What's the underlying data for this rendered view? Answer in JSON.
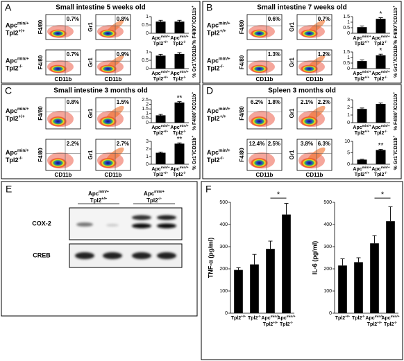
{
  "genotypes": [
    [
      [
        "Apc",
        "min/+"
      ],
      [
        "Tpl2",
        "+/+"
      ]
    ],
    [
      [
        "Apc",
        "min/+"
      ],
      [
        "Tpl2",
        "-/-"
      ]
    ]
  ],
  "flow_ylabels": [
    "F4/80",
    "Gr1"
  ],
  "flow_xlabel": "CD11b",
  "bar_ylabels": [
    [
      "% F4/80",
      "+",
      "/CD11b",
      "+"
    ],
    [
      "% Gr1",
      "+",
      "/CD11b",
      "+"
    ]
  ],
  "panels": [
    {
      "letter": "A",
      "title": "Small intestine 5 weeks old",
      "percents": [
        [
          [
            "0.7%"
          ],
          [
            "0.8%"
          ]
        ],
        [
          [
            "0.7%"
          ],
          [
            "0.9%"
          ]
        ]
      ],
      "bars": [
        {
          "ylim": [
            0,
            1
          ],
          "yticks": [
            0,
            0.5,
            1
          ],
          "values": [
            0.7,
            0.7
          ],
          "errors": [
            0.08,
            0.08
          ]
        },
        {
          "ylim": [
            0,
            1
          ],
          "yticks": [
            0,
            0.5,
            1
          ],
          "values": [
            0.78,
            0.88
          ],
          "errors": [
            0.08,
            0.08
          ]
        }
      ]
    },
    {
      "letter": "B",
      "title": "Small intestine 7 weeks old",
      "percents": [
        [
          [
            "0.6%"
          ],
          [
            "0.7%"
          ]
        ],
        [
          [
            "1.3%"
          ],
          [
            "1.2%"
          ]
        ]
      ],
      "bars": [
        {
          "ylim": [
            0,
            1.5
          ],
          "yticks": [
            0,
            0.5,
            1,
            1.5
          ],
          "values": [
            0.55,
            1.3
          ],
          "errors": [
            0.1,
            0.1
          ],
          "sig": [
            null,
            "*"
          ]
        },
        {
          "ylim": [
            0,
            1.5
          ],
          "yticks": [
            0,
            0.5,
            1,
            1.5
          ],
          "values": [
            0.68,
            1.2
          ],
          "errors": [
            0.1,
            0.1
          ],
          "sig": [
            null,
            "*"
          ]
        }
      ]
    },
    {
      "letter": "C",
      "title": "Small intestine 3 months old",
      "percents": [
        [
          [
            "0.8%"
          ],
          [
            "1.5%"
          ]
        ],
        [
          [
            "2.2%"
          ],
          [
            "2.7%"
          ]
        ]
      ],
      "bars": [
        {
          "ylim": [
            0,
            2.5
          ],
          "yticks": [
            0,
            0.5,
            1,
            1.5,
            2,
            2.5
          ],
          "values": [
            0.8,
            2.2
          ],
          "errors": [
            0.1,
            0.1
          ],
          "sig": [
            null,
            "**"
          ]
        },
        {
          "ylim": [
            0,
            3
          ],
          "yticks": [
            0,
            1,
            2,
            3
          ],
          "values": [
            1.5,
            2.7
          ],
          "errors": [
            0.1,
            0.1
          ],
          "sig": [
            null,
            "**"
          ]
        }
      ]
    },
    {
      "letter": "D",
      "title": "Spleen 3 months old",
      "percents": [
        [
          [
            "6.2%",
            "1.8%"
          ],
          [
            "2.1%",
            "2.2%"
          ]
        ],
        [
          [
            "12.4%",
            "2.5%"
          ],
          [
            "3.8%",
            "6.3%"
          ]
        ]
      ],
      "bars": [
        {
          "ylim": [
            0,
            3
          ],
          "yticks": [
            0,
            1,
            2,
            3
          ],
          "values": [
            1.8,
            2.45
          ],
          "errors": [
            0.12,
            0.12
          ]
        },
        {
          "ylim": [
            0,
            10
          ],
          "yticks": [
            0,
            5,
            10
          ],
          "values": [
            2,
            6.2
          ],
          "errors": [
            0.2,
            0.3
          ],
          "sig": [
            null,
            "**"
          ]
        }
      ]
    }
  ],
  "blot": {
    "letter": "E",
    "rows": [
      "COX-2",
      "CREB"
    ]
  },
  "elisa": {
    "letter": "F",
    "categories": [
      [
        [
          "Tpl2",
          "+/+"
        ]
      ],
      [
        [
          "Tpl2",
          "-/-"
        ]
      ],
      [
        [
          "Apc",
          "min/+"
        ],
        [
          "Tpl2",
          "+/+"
        ]
      ],
      [
        [
          "Apc",
          "min/+"
        ],
        [
          "Tpl2",
          "-/-"
        ]
      ]
    ],
    "charts": [
      {
        "ylabel": "TNF-α (pg/ml)",
        "ylim": [
          0,
          500
        ],
        "yticks": [
          0,
          100,
          200,
          300,
          400,
          500
        ],
        "values": [
          195,
          220,
          290,
          445
        ],
        "errors": [
          10,
          45,
          35,
          50
        ],
        "sig": "*"
      },
      {
        "ylabel": "IL-6 (pg/ml)",
        "ylim": [
          0,
          500
        ],
        "yticks": [
          0,
          100,
          200,
          300,
          400,
          500
        ],
        "values": [
          215,
          230,
          315,
          415
        ],
        "errors": [
          30,
          20,
          35,
          65
        ],
        "sig": "*"
      }
    ]
  }
}
